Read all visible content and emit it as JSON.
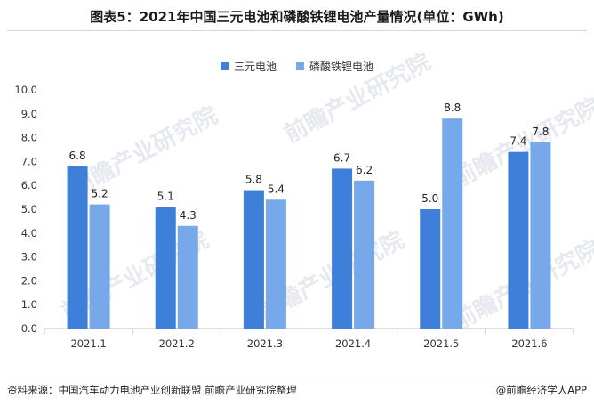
{
  "title": "图表5：2021年中国三元电池和磷酸铁锂电池产量情况(单位：GWh)",
  "source": "资料来源：中国汽车动力电池产业创新联盟 前瞻产业研究院整理",
  "brand": "@前瞻经济学人APP",
  "watermark": "前瞻产业研究院",
  "chart_data": {
    "type": "bar",
    "categories": [
      "2021.1",
      "2021.2",
      "2021.3",
      "2021.4",
      "2021.5",
      "2021.6"
    ],
    "series": [
      {
        "name": "三元电池",
        "color": "#3d7fd9",
        "values": [
          6.8,
          5.1,
          5.8,
          6.7,
          5.0,
          7.4
        ]
      },
      {
        "name": "磷酸铁锂电池",
        "color": "#77a9ea",
        "values": [
          5.2,
          4.3,
          5.4,
          6.2,
          8.8,
          7.8
        ]
      }
    ],
    "value_labels": [
      [
        "6.8",
        "5.1",
        "5.8",
        "6.7",
        "5.0",
        "7.4"
      ],
      [
        "5.2",
        "4.3",
        "5.4",
        "6.2",
        "8.8",
        "7.8"
      ]
    ],
    "yticks": [
      "0.0",
      "1.0",
      "2.0",
      "3.0",
      "4.0",
      "5.0",
      "6.0",
      "7.0",
      "8.0",
      "9.0",
      "10.0"
    ],
    "ylim": [
      0,
      10
    ],
    "legend_position": "top-center",
    "grid": false
  }
}
